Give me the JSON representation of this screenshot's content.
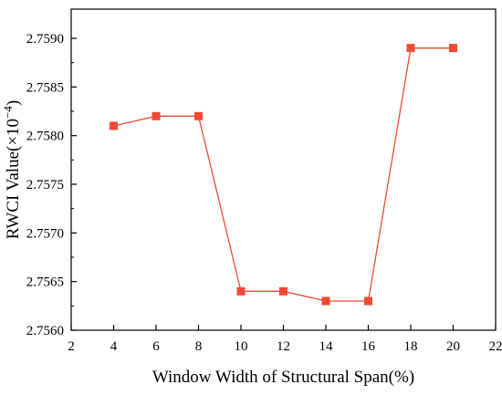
{
  "chart_data": {
    "type": "line",
    "xlabel": "Window Width of Structural Span(%)",
    "ylabel_main": "RWCI Value(×10",
    "ylabel_exp": "−4",
    "ylabel_close": ")",
    "x": [
      4,
      6,
      8,
      10,
      12,
      14,
      16,
      18,
      20
    ],
    "series": [
      {
        "values": [
          2.7581,
          2.7582,
          2.7582,
          2.7564,
          2.7564,
          2.7563,
          2.7563,
          2.7589,
          2.7589
        ],
        "color": "#f04a34",
        "marker": "square"
      }
    ],
    "xlim": [
      2,
      22
    ],
    "ylim": [
      2.756,
      2.7593
    ],
    "xticks": [
      "2",
      "4",
      "6",
      "8",
      "10",
      "12",
      "14",
      "16",
      "18",
      "20",
      "22"
    ],
    "yticks": [
      "2.7560",
      "2.7565",
      "2.7570",
      "2.7575",
      "2.7580",
      "2.7585",
      "2.7590"
    ],
    "grid": false,
    "legend": false
  }
}
